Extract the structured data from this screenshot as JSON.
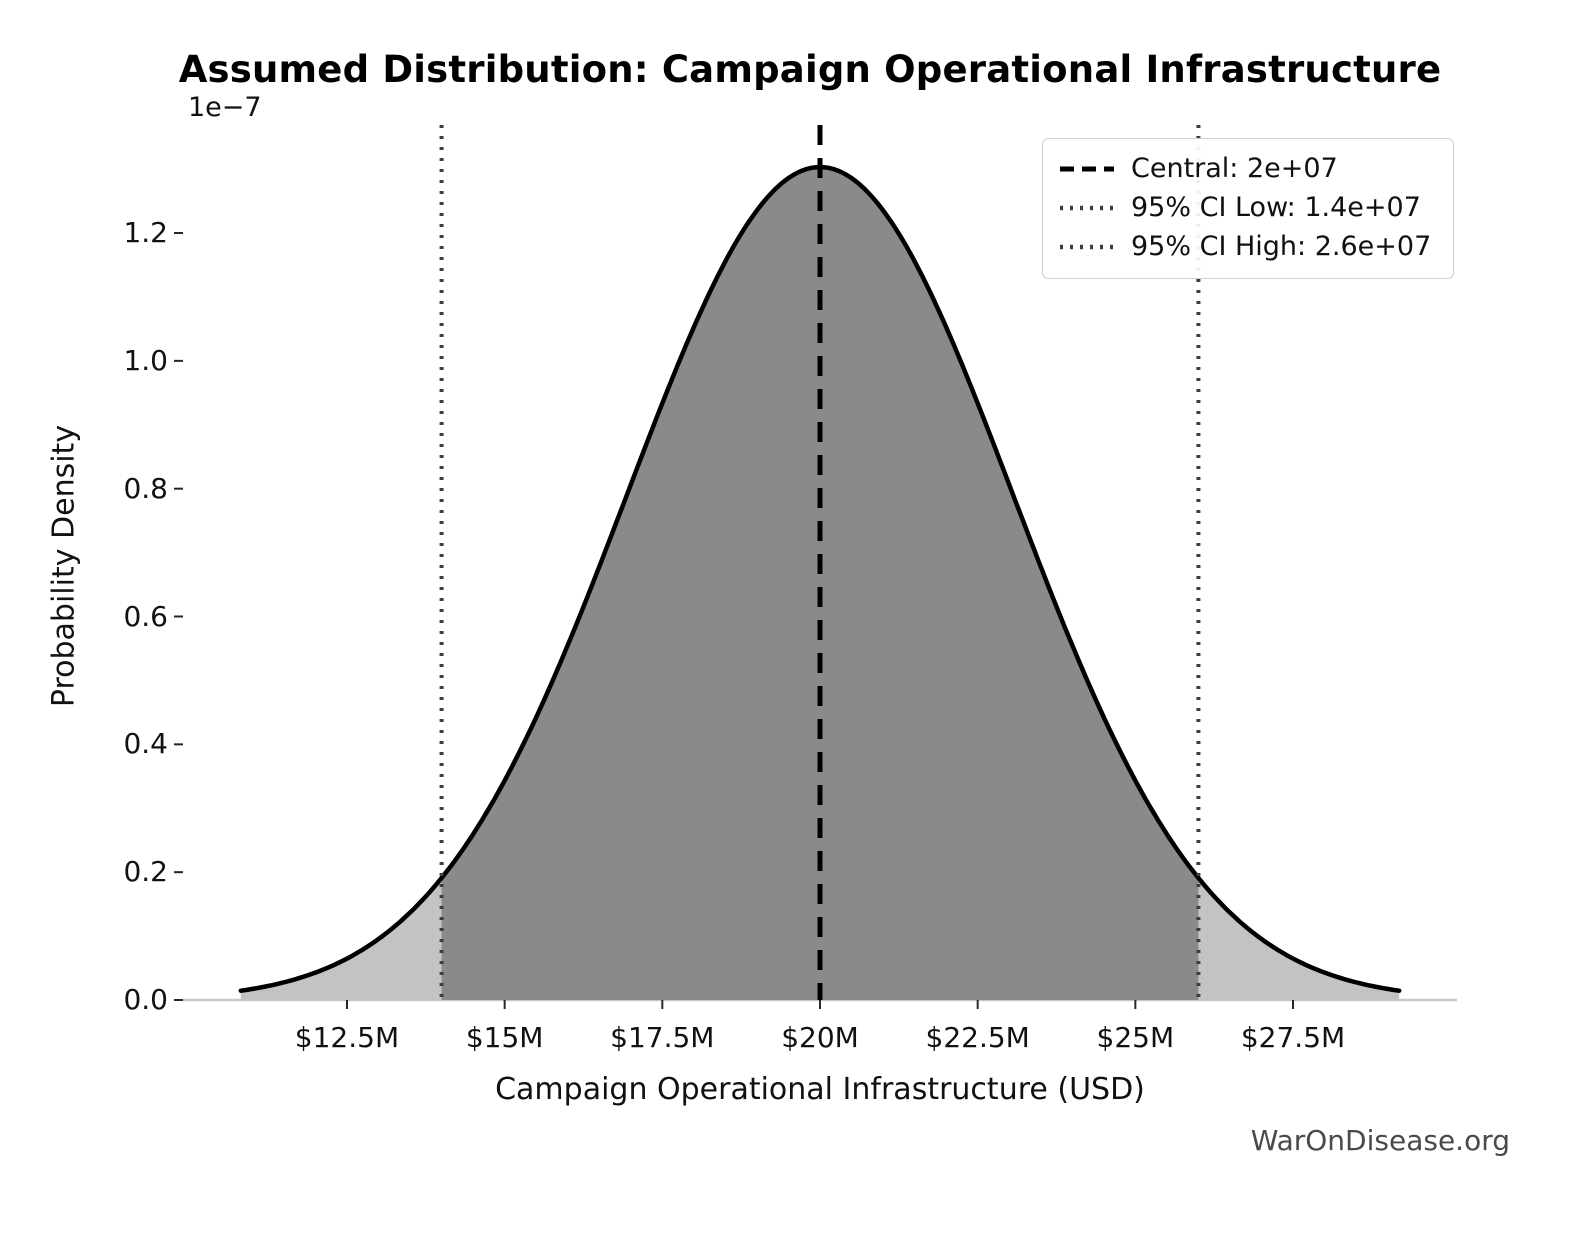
{
  "watermark": "WarOnDisease.org",
  "chart_data": {
    "type": "area",
    "title": "Assumed Distribution: Campaign Operational Infrastructure",
    "xlabel": "Campaign Operational Infrastructure (USD)",
    "ylabel": "Probability Density",
    "y_offset_label": "1e−7",
    "distribution": "normal",
    "central": 20000000,
    "mean": 20000000,
    "sigma": 3061224.5,
    "ci_low": 14000000,
    "ci_high": 26000000,
    "peak_density": 1.303e-07,
    "xlim": [
      9900000,
      30100000
    ],
    "ylim": [
      0,
      1.369e-07
    ],
    "curve_x_min": 10816327,
    "curve_x_max": 29183673,
    "grid": false,
    "legend_position": "upper right",
    "x_ticks": [
      {
        "value": 12500000,
        "label": "$12.5M"
      },
      {
        "value": 15000000,
        "label": "$15M"
      },
      {
        "value": 17500000,
        "label": "$17.5M"
      },
      {
        "value": 20000000,
        "label": "$20M"
      },
      {
        "value": 22500000,
        "label": "$22.5M"
      },
      {
        "value": 25000000,
        "label": "$25M"
      },
      {
        "value": 27500000,
        "label": "$27.5M"
      }
    ],
    "y_ticks": [
      {
        "value": 0,
        "label": "0.0"
      },
      {
        "value": 2e-08,
        "label": "0.2"
      },
      {
        "value": 4e-08,
        "label": "0.4"
      },
      {
        "value": 6e-08,
        "label": "0.6"
      },
      {
        "value": 8e-08,
        "label": "0.8"
      },
      {
        "value": 1e-07,
        "label": "1.0"
      },
      {
        "value": 1.2e-07,
        "label": "1.2"
      }
    ],
    "legend": [
      {
        "label": "Central: 2e+07",
        "style": "dashed",
        "color": "#000000"
      },
      {
        "label": "95% CI Low: 1.4e+07",
        "style": "dotted",
        "color": "#3d3d3d"
      },
      {
        "label": "95% CI High: 2.6e+07",
        "style": "dotted",
        "color": "#3d3d3d"
      }
    ],
    "colors": {
      "curve": "#000000",
      "fill_outer": "#c3c3c3",
      "fill_ci": "#8a8a8a",
      "central_line": "#000000",
      "ci_line": "#3d3d3d"
    }
  }
}
